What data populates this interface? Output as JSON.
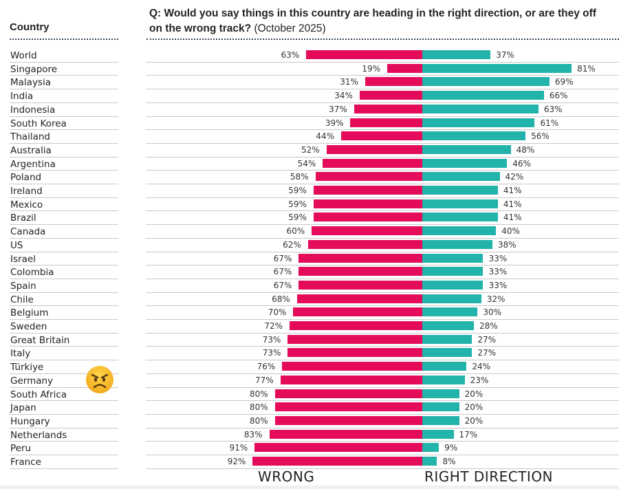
{
  "header": {
    "country_label": "Country",
    "question": "Q: Would you say things in this country are heading in the right direction, or are they off on the wrong track?",
    "date": "(October 2025)"
  },
  "colors": {
    "wrong": "#e40b5b",
    "right": "#22b3ab"
  },
  "emoji": {
    "name": "angry-face-emoji",
    "row": "Germany"
  },
  "chart_data": {
    "type": "bar",
    "orientation": "horizontal-diverging",
    "title": "Q: Would you say things in this country are heading in the right direction, or are they off on the wrong track? (October 2025)",
    "categories": [
      "World",
      "Singapore",
      "Malaysia",
      "India",
      "Indonesia",
      "South Korea",
      "Thailand",
      "Australia",
      "Argentina",
      "Poland",
      "Ireland",
      "Mexico",
      "Brazil",
      "Canada",
      "US",
      "Israel",
      "Colombia",
      "Spain",
      "Chile",
      "Belgium",
      "Sweden",
      "Great Britain",
      "Italy",
      "Türkiye",
      "Germany",
      "South Africa",
      "Japan",
      "Hungary",
      "Netherlands",
      "Peru",
      "France"
    ],
    "series": [
      {
        "name": "WRONG",
        "values": [
          63,
          19,
          31,
          34,
          37,
          39,
          44,
          52,
          54,
          58,
          59,
          59,
          59,
          60,
          62,
          67,
          67,
          67,
          68,
          70,
          72,
          73,
          73,
          76,
          77,
          80,
          80,
          80,
          83,
          91,
          92
        ]
      },
      {
        "name": "RIGHT DIRECTION",
        "values": [
          37,
          81,
          69,
          66,
          63,
          61,
          56,
          48,
          46,
          42,
          41,
          41,
          41,
          40,
          38,
          33,
          33,
          33,
          32,
          30,
          28,
          27,
          27,
          24,
          23,
          20,
          20,
          20,
          17,
          9,
          8
        ]
      }
    ],
    "unit": "%",
    "xlim": [
      0,
      100
    ]
  }
}
